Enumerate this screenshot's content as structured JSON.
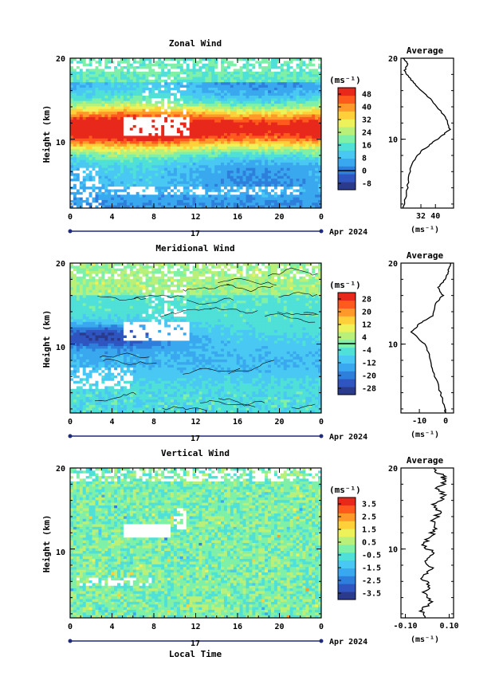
{
  "chart_data": [
    {
      "type": "heatmap",
      "title": "Zonal Wind",
      "ylabel": "Height (km)",
      "x_ticks": [
        "0",
        "4",
        "8",
        "12",
        "16",
        "20",
        "0"
      ],
      "xlim": [
        0,
        24
      ],
      "y_ticks": [
        "20",
        "10"
      ],
      "ylim": [
        1.5,
        20
      ],
      "date_label": "17",
      "month_label": "Apr 2024",
      "colorbar_unit": "(ms⁻¹)",
      "colorbar_ticks": [
        "48",
        "40",
        "32",
        "24",
        "16",
        "8",
        "0",
        "-8"
      ],
      "colorbar_range": [
        -12,
        52
      ],
      "colorbar_zero": 0,
      "field": "zonal",
      "average": {
        "title": "Average",
        "x_ticks": [
          "32",
          "40"
        ],
        "xlim": [
          21,
          50
        ],
        "unit_label": "(ms⁻¹)",
        "profile": [
          [
            22,
            1.5
          ],
          [
            24,
            3
          ],
          [
            25,
            5
          ],
          [
            27,
            7
          ],
          [
            32,
            8.5
          ],
          [
            38,
            9.5
          ],
          [
            44,
            10.5
          ],
          [
            48,
            11.2
          ],
          [
            46,
            12.5
          ],
          [
            41,
            14
          ],
          [
            35,
            15.5
          ],
          [
            30,
            16.5
          ],
          [
            26,
            17.5
          ],
          [
            23,
            18.5
          ],
          [
            25,
            19.3
          ],
          [
            22,
            20
          ]
        ]
      }
    },
    {
      "type": "heatmap",
      "title": "Meridional Wind",
      "ylabel": "Height (km)",
      "x_ticks": [
        "0",
        "4",
        "8",
        "12",
        "16",
        "20",
        "0"
      ],
      "xlim": [
        0,
        24
      ],
      "y_ticks": [
        "20",
        "10"
      ],
      "ylim": [
        1.5,
        20
      ],
      "date_label": "17",
      "month_label": "Apr 2024",
      "colorbar_unit": "(ms⁻¹)",
      "colorbar_ticks": [
        "28",
        "20",
        "12",
        "4",
        "-4",
        "-12",
        "-20",
        "-28"
      ],
      "colorbar_range": [
        -32,
        32
      ],
      "colorbar_zero": 0,
      "field": "meridional",
      "average": {
        "title": "Average",
        "x_ticks": [
          "-10",
          "0"
        ],
        "xlim": [
          -17,
          3
        ],
        "unit_label": "(ms⁻¹)",
        "profile": [
          [
            0,
            1.5
          ],
          [
            -1,
            3
          ],
          [
            -3,
            5
          ],
          [
            -5,
            7
          ],
          [
            -6,
            8.5
          ],
          [
            -8,
            10
          ],
          [
            -13,
            11.5
          ],
          [
            -10,
            12.5
          ],
          [
            -5,
            13.5
          ],
          [
            -4,
            15
          ],
          [
            -1,
            16
          ],
          [
            -3,
            17
          ],
          [
            0,
            18
          ],
          [
            1,
            19
          ],
          [
            2,
            20
          ]
        ]
      }
    },
    {
      "type": "heatmap",
      "title": "Vertical Wind",
      "xlabel": "Local Time",
      "ylabel": "Height (km)",
      "x_ticks": [
        "0",
        "4",
        "8",
        "12",
        "16",
        "20",
        "0"
      ],
      "xlim": [
        0,
        24
      ],
      "y_ticks": [
        "20",
        "10"
      ],
      "ylim": [
        1.5,
        20
      ],
      "date_label": "17",
      "month_label": "Apr 2024",
      "colorbar_unit": "(ms⁻¹)",
      "colorbar_ticks": [
        "3.5",
        "2.5",
        "1.5",
        "0.5",
        "-0.5",
        "-1.5",
        "-2.5",
        "-3.5"
      ],
      "colorbar_range": [
        -4,
        4
      ],
      "field": "vertical",
      "average": {
        "title": "Average",
        "x_ticks": [
          "-0.10",
          "0.10"
        ],
        "xlim": [
          -0.12,
          0.12
        ],
        "unit_label": "(ms⁻¹)",
        "profile": [
          [
            0.0,
            1.5
          ],
          [
            -0.03,
            2.5
          ],
          [
            0.02,
            3.5
          ],
          [
            -0.02,
            4.5
          ],
          [
            0.01,
            5.5
          ],
          [
            -0.03,
            6.5
          ],
          [
            0.02,
            7.5
          ],
          [
            -0.01,
            8.5
          ],
          [
            0.03,
            9.5
          ],
          [
            -0.02,
            10.5
          ],
          [
            0.01,
            11.5
          ],
          [
            0.04,
            12.5
          ],
          [
            0.02,
            13.5
          ],
          [
            0.06,
            14.5
          ],
          [
            0.03,
            15.5
          ],
          [
            0.08,
            16.5
          ],
          [
            0.05,
            17.5
          ],
          [
            0.09,
            18.5
          ],
          [
            0.06,
            19.2
          ],
          [
            0.03,
            20
          ]
        ]
      }
    }
  ],
  "colors": {
    "bar_colors": [
      "#2a3a8c",
      "#2f55c0",
      "#2e7fdc",
      "#3aa8ef",
      "#48c8f2",
      "#4fe0d8",
      "#7ef0a8",
      "#b8f07a",
      "#eef25a",
      "#ffd03a",
      "#ff9a2a",
      "#ff5a1e",
      "#e8281a"
    ],
    "axis": "#000000",
    "missing": "#ffffff",
    "contour": "#000000"
  }
}
